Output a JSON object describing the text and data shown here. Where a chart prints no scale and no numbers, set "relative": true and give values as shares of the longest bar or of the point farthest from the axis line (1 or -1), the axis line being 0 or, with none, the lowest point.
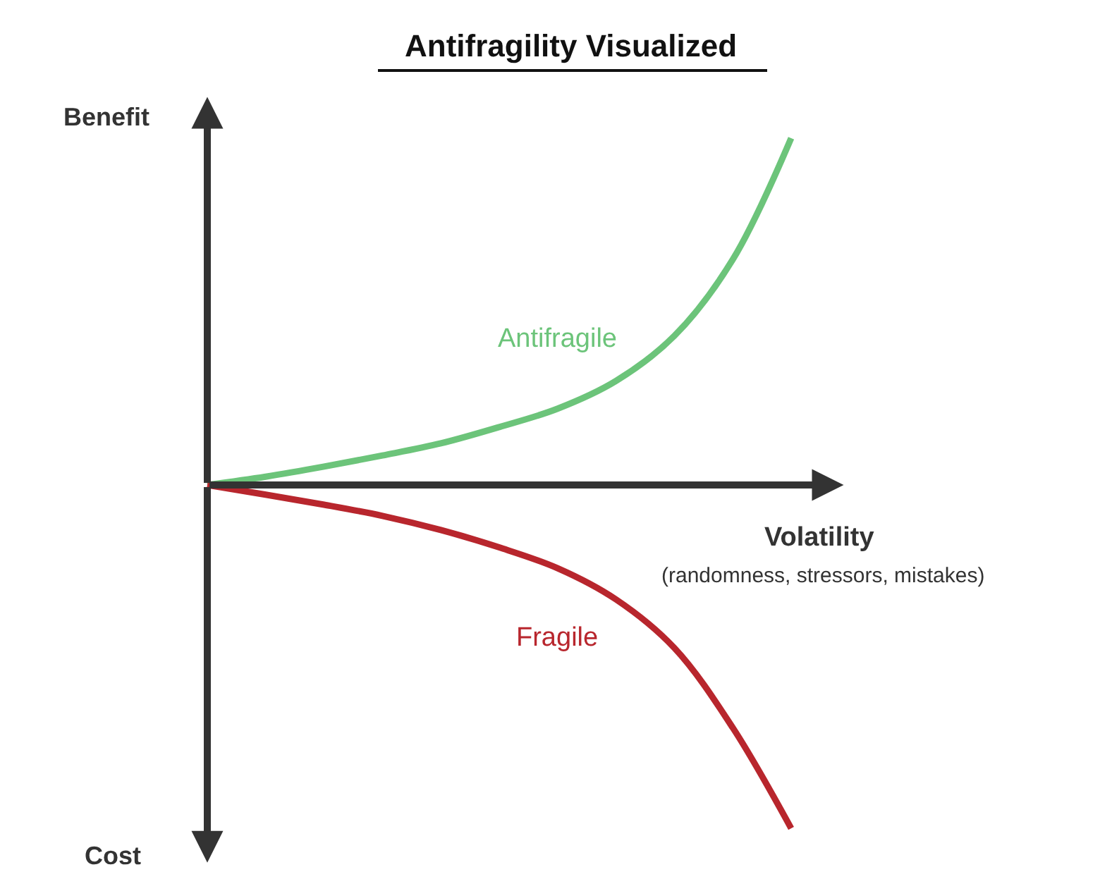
{
  "chart_data": {
    "type": "line",
    "title": "Antifragility Visualized",
    "xlabel": "Volatility",
    "relative": true,
    "marker": "none",
    "line_style": "solid",
    "legend": false,
    "categories": [
      null,
      null,
      null,
      null,
      null,
      null,
      null,
      null,
      null,
      null,
      null
    ],
    "series": [
      {
        "name": "Antifragile",
        "color": "#6cc47a",
        "values": [
          0,
          0.024,
          0.053,
          0.085,
          0.12,
          0.167,
          0.22,
          0.3,
          0.43,
          0.65,
          1
        ]
      },
      {
        "name": "Fragile",
        "color": "#b8262d",
        "values": [
          0,
          -0.028,
          -0.057,
          -0.089,
          -0.13,
          -0.18,
          -0.24,
          -0.33,
          -0.47,
          -0.7,
          -0.99
        ]
      }
    ],
    "annotations": [
      "Benefit",
      "Cost",
      "(randomness, stressors, mistakes)"
    ]
  }
}
